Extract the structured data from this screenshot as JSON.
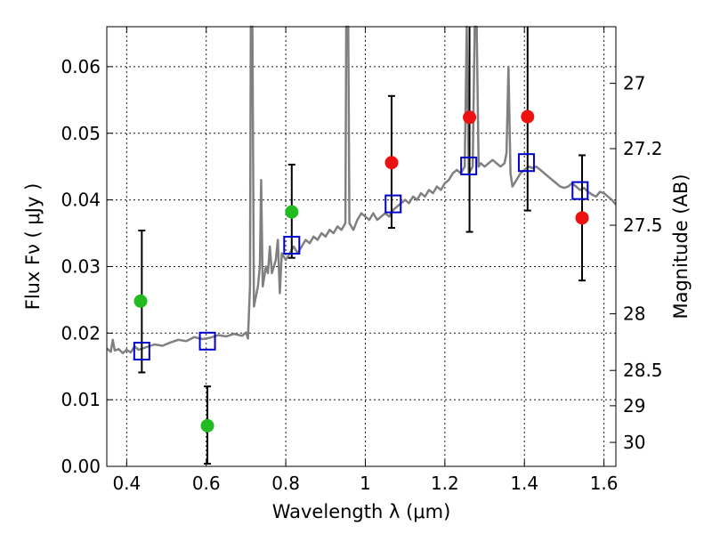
{
  "chart_data": {
    "type": "scatter",
    "xlabel": "Wavelength  λ (μm)",
    "ylabel": "Flux  Fν  ( μJy )",
    "y2label": "Magnitude (AB)",
    "xlim": [
      0.35,
      1.63
    ],
    "ylim": [
      0.0,
      0.066
    ],
    "grid": true,
    "x_ticks": [
      0.4,
      0.6,
      0.8,
      1.0,
      1.2,
      1.4,
      1.6
    ],
    "x_tick_labels": [
      "0.4",
      "0.6",
      "0.8",
      "1",
      "1.2",
      "1.4",
      "1.6"
    ],
    "y_ticks": [
      0.0,
      0.01,
      0.02,
      0.03,
      0.04,
      0.05,
      0.06
    ],
    "y_tick_labels": [
      "0.00",
      "0.01",
      "0.02",
      "0.03",
      "0.04",
      "0.05",
      "0.06"
    ],
    "y2_ticks": [
      {
        "label": "27",
        "flux": 0.0575
      },
      {
        "label": "27.2",
        "flux": 0.0477
      },
      {
        "label": "27.5",
        "flux": 0.0362
      },
      {
        "label": "28",
        "flux": 0.0229
      },
      {
        "label": "28.5",
        "flux": 0.0144
      },
      {
        "label": "29",
        "flux": 0.0091
      },
      {
        "label": "30",
        "flux": 0.0036
      }
    ],
    "colors": {
      "spectrum": "#808080",
      "green": "#22bb22",
      "red": "#ee1111",
      "model": "#0000cc",
      "errorbar": "#000000"
    },
    "series": [
      {
        "type": "line",
        "color": "spectrum",
        "points": [
          [
            0.35,
            0.0177
          ],
          [
            0.36,
            0.0172
          ],
          [
            0.365,
            0.019
          ],
          [
            0.37,
            0.0174
          ],
          [
            0.38,
            0.0176
          ],
          [
            0.39,
            0.017
          ],
          [
            0.4,
            0.0175
          ],
          [
            0.41,
            0.0171
          ],
          [
            0.42,
            0.018
          ],
          [
            0.43,
            0.0175
          ],
          [
            0.45,
            0.0179
          ],
          [
            0.47,
            0.0183
          ],
          [
            0.49,
            0.0181
          ],
          [
            0.51,
            0.0186
          ],
          [
            0.53,
            0.019
          ],
          [
            0.55,
            0.0188
          ],
          [
            0.57,
            0.0194
          ],
          [
            0.59,
            0.0191
          ],
          [
            0.61,
            0.0193
          ],
          [
            0.63,
            0.0197
          ],
          [
            0.65,
            0.0195
          ],
          [
            0.67,
            0.0199
          ],
          [
            0.69,
            0.0196
          ],
          [
            0.7,
            0.0201
          ],
          [
            0.705,
            0.0192
          ],
          [
            0.71,
            0.027
          ],
          [
            0.712,
            0.066
          ],
          [
            0.716,
            0.066
          ],
          [
            0.72,
            0.024
          ],
          [
            0.73,
            0.027
          ],
          [
            0.735,
            0.03
          ],
          [
            0.738,
            0.043
          ],
          [
            0.742,
            0.027
          ],
          [
            0.75,
            0.03
          ],
          [
            0.755,
            0.029
          ],
          [
            0.76,
            0.033
          ],
          [
            0.765,
            0.029
          ],
          [
            0.775,
            0.031
          ],
          [
            0.78,
            0.034
          ],
          [
            0.785,
            0.026
          ],
          [
            0.79,
            0.032
          ],
          [
            0.8,
            0.031
          ],
          [
            0.81,
            0.032
          ],
          [
            0.82,
            0.033
          ],
          [
            0.83,
            0.032
          ],
          [
            0.84,
            0.033
          ],
          [
            0.85,
            0.034
          ],
          [
            0.86,
            0.0335
          ],
          [
            0.87,
            0.0345
          ],
          [
            0.88,
            0.034
          ],
          [
            0.89,
            0.035
          ],
          [
            0.9,
            0.0345
          ],
          [
            0.91,
            0.0355
          ],
          [
            0.92,
            0.035
          ],
          [
            0.93,
            0.036
          ],
          [
            0.94,
            0.0355
          ],
          [
            0.95,
            0.0365
          ],
          [
            0.952,
            0.066
          ],
          [
            0.957,
            0.066
          ],
          [
            0.96,
            0.0365
          ],
          [
            0.97,
            0.0355
          ],
          [
            0.98,
            0.037
          ],
          [
            0.99,
            0.038
          ],
          [
            1.0,
            0.0375
          ],
          [
            1.01,
            0.037
          ],
          [
            1.02,
            0.038
          ],
          [
            1.03,
            0.037
          ],
          [
            1.04,
            0.0375
          ],
          [
            1.05,
            0.038
          ],
          [
            1.06,
            0.0375
          ],
          [
            1.07,
            0.0385
          ],
          [
            1.08,
            0.039
          ],
          [
            1.09,
            0.0395
          ],
          [
            1.1,
            0.04
          ],
          [
            1.11,
            0.0395
          ],
          [
            1.12,
            0.0405
          ],
          [
            1.13,
            0.04
          ],
          [
            1.14,
            0.041
          ],
          [
            1.15,
            0.0405
          ],
          [
            1.16,
            0.0415
          ],
          [
            1.17,
            0.041
          ],
          [
            1.18,
            0.042
          ],
          [
            1.19,
            0.0415
          ],
          [
            1.2,
            0.0425
          ],
          [
            1.21,
            0.043
          ],
          [
            1.22,
            0.044
          ],
          [
            1.23,
            0.0445
          ],
          [
            1.24,
            0.044
          ],
          [
            1.25,
            0.045
          ],
          [
            1.255,
            0.066
          ],
          [
            1.26,
            0.044
          ],
          [
            1.27,
            0.045
          ],
          [
            1.275,
            0.066
          ],
          [
            1.28,
            0.066
          ],
          [
            1.285,
            0.045
          ],
          [
            1.29,
            0.0455
          ],
          [
            1.3,
            0.045
          ],
          [
            1.31,
            0.0455
          ],
          [
            1.32,
            0.046
          ],
          [
            1.33,
            0.0455
          ],
          [
            1.34,
            0.045
          ],
          [
            1.35,
            0.0455
          ],
          [
            1.355,
            0.047
          ],
          [
            1.36,
            0.06
          ],
          [
            1.365,
            0.044
          ],
          [
            1.37,
            0.042
          ],
          [
            1.38,
            0.043
          ],
          [
            1.39,
            0.044
          ],
          [
            1.4,
            0.0445
          ],
          [
            1.41,
            0.045
          ],
          [
            1.42,
            0.0448
          ],
          [
            1.43,
            0.045
          ],
          [
            1.44,
            0.0445
          ],
          [
            1.45,
            0.044
          ],
          [
            1.46,
            0.0435
          ],
          [
            1.47,
            0.043
          ],
          [
            1.48,
            0.0425
          ],
          [
            1.49,
            0.042
          ],
          [
            1.5,
            0.0418
          ],
          [
            1.51,
            0.042
          ],
          [
            1.52,
            0.0425
          ],
          [
            1.53,
            0.042
          ],
          [
            1.54,
            0.0415
          ],
          [
            1.55,
            0.0418
          ],
          [
            1.56,
            0.0412
          ],
          [
            1.57,
            0.0408
          ],
          [
            1.58,
            0.0405
          ],
          [
            1.59,
            0.0412
          ],
          [
            1.6,
            0.041
          ],
          [
            1.61,
            0.0405
          ],
          [
            1.62,
            0.04
          ],
          [
            1.63,
            0.0393
          ]
        ]
      },
      {
        "type": "scatter",
        "marker": "circle",
        "color": "green",
        "points": [
          {
            "x": 0.435,
            "y": 0.0248
          },
          {
            "x": 0.603,
            "y": 0.0061
          },
          {
            "x": 0.815,
            "y": 0.0382
          }
        ]
      },
      {
        "type": "scatter",
        "marker": "circle",
        "color": "red",
        "points": [
          {
            "x": 1.066,
            "y": 0.0456
          },
          {
            "x": 1.262,
            "y": 0.0524
          },
          {
            "x": 1.408,
            "y": 0.0525
          },
          {
            "x": 1.545,
            "y": 0.0373
          }
        ]
      },
      {
        "type": "scatter",
        "marker": "open-square",
        "color": "model",
        "points": [
          {
            "x": 0.438,
            "y": 0.0173
          },
          {
            "x": 0.603,
            "y": 0.0188
          },
          {
            "x": 0.815,
            "y": 0.0332
          },
          {
            "x": 1.07,
            "y": 0.0394
          },
          {
            "x": 1.26,
            "y": 0.0451
          },
          {
            "x": 1.405,
            "y": 0.0456
          },
          {
            "x": 1.54,
            "y": 0.0414
          }
        ]
      }
    ],
    "errorbars": [
      {
        "x": 0.438,
        "low": 0.0141,
        "high": 0.0354
      },
      {
        "x": 0.603,
        "low": 0.0004,
        "high": 0.012
      },
      {
        "x": 0.815,
        "low": 0.0313,
        "high": 0.0453
      },
      {
        "x": 1.066,
        "low": 0.0358,
        "high": 0.0556
      },
      {
        "x": 1.262,
        "low": 0.0352,
        "high": 0.066
      },
      {
        "x": 1.408,
        "low": 0.0384,
        "high": 0.066
      },
      {
        "x": 1.545,
        "low": 0.0279,
        "high": 0.0467
      }
    ]
  }
}
